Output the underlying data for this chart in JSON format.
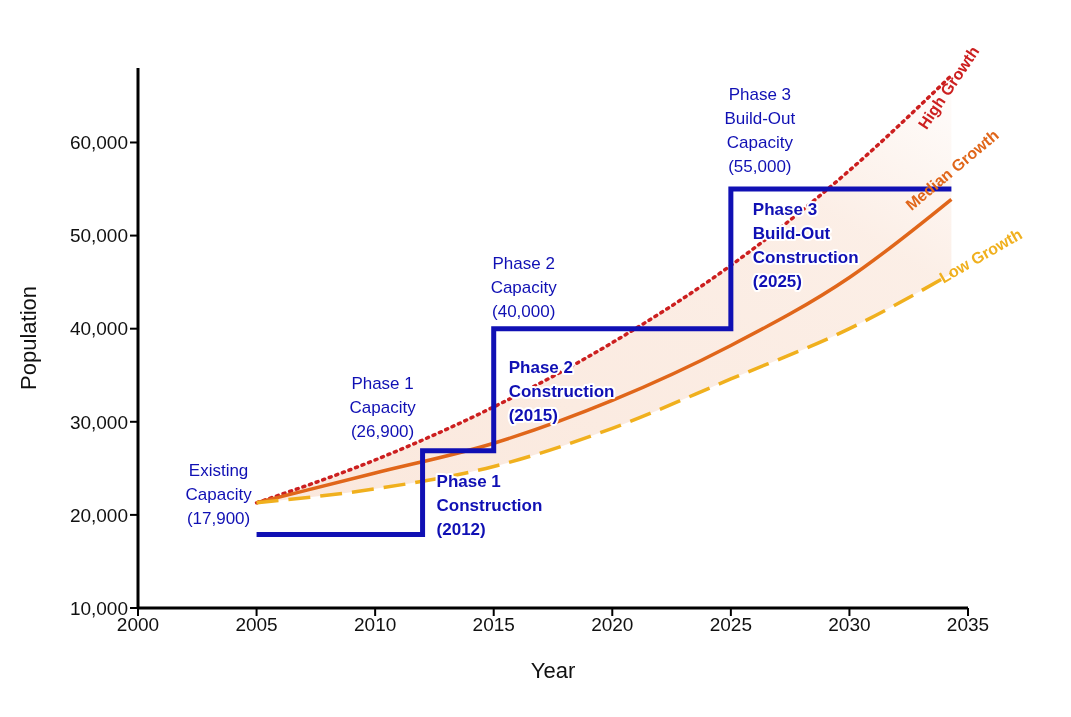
{
  "chart_data": {
    "type": "line",
    "xlabel": "Year",
    "ylabel": "Population",
    "xlim": [
      2000,
      2035
    ],
    "xticks": [
      2000,
      2005,
      2010,
      2015,
      2020,
      2025,
      2030,
      2035
    ],
    "ylim": [
      10000,
      68000
    ],
    "yticks": [
      {
        "value": 10000,
        "label": "10,000"
      },
      {
        "value": 20000,
        "label": "20,000"
      },
      {
        "value": 30000,
        "label": "30,000"
      },
      {
        "value": 40000,
        "label": "40,000"
      },
      {
        "value": 50000,
        "label": "50,000"
      },
      {
        "value": 60000,
        "label": "60,000"
      }
    ],
    "grid": false,
    "legend": false,
    "marker": "none",
    "series": [
      {
        "name": "High Growth",
        "color": "#cc1f1f",
        "line_style": "dotted",
        "x": [
          2005,
          2010,
          2015,
          2020,
          2025,
          2030,
          2034.3
        ],
        "values": [
          21300,
          25900,
          31600,
          38500,
          46800,
          57000,
          67200
        ]
      },
      {
        "name": "Median Growth",
        "color": "#e0661a",
        "line_style": "solid",
        "x": [
          2005,
          2010,
          2015,
          2020,
          2025,
          2030,
          2034.3
        ],
        "values": [
          21300,
          24500,
          27700,
          32300,
          38200,
          45500,
          53900
        ],
        "lower": [
          21300,
          22800,
          25200,
          29300,
          34600,
          40000,
          45900
        ],
        "upper": [
          21300,
          25900,
          31600,
          38500,
          46800,
          57000,
          67200
        ]
      },
      {
        "name": "Low Growth",
        "color": "#f0b01e",
        "line_style": "dashed",
        "x": [
          2005,
          2010,
          2015,
          2020,
          2025,
          2030,
          2034.3
        ],
        "values": [
          21300,
          22800,
          25200,
          29300,
          34600,
          40000,
          45900
        ]
      },
      {
        "type": "step",
        "color": "#1010b4",
        "line_style": "solid",
        "x": [
          2005,
          2012,
          2015,
          2025,
          2034.3
        ],
        "values": [
          17900,
          26900,
          40000,
          55000,
          55000
        ]
      }
    ],
    "annotations": [
      {
        "text": "Existing Capacity (17,900)",
        "x": 2005,
        "y": 17900
      },
      {
        "text": "Phase 1 Capacity (26,900)",
        "x": 2012,
        "y": 26900
      },
      {
        "text": "Phase 2 Capacity (40,000)",
        "x": 2015,
        "y": 40000
      },
      {
        "text": "Phase 3 Build-Out Capacity (55,000)",
        "x": 2025,
        "y": 55000
      },
      {
        "text": "Phase 1 Construction (2012)",
        "x": 2012,
        "y": 26900
      },
      {
        "text": "Phase 2 Construction (2015)",
        "x": 2015,
        "y": 40000
      },
      {
        "text": "Phase 3 Build-Out Construction (2025)",
        "x": 2025,
        "y": 55000
      }
    ]
  }
}
